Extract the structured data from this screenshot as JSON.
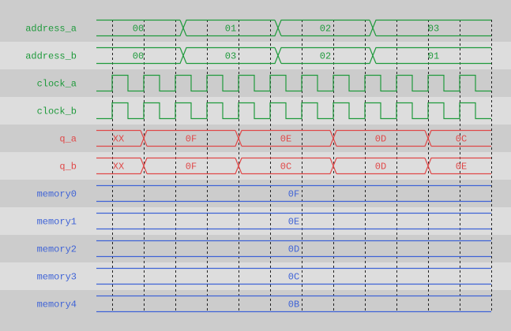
{
  "colors": {
    "row_dark": "#cccccc",
    "row_light": "#dddddd",
    "green": "#1f9a3c",
    "red": "#e04848",
    "blue": "#3f63d6",
    "grid": "#222222"
  },
  "time_grid_divisions": 12,
  "signals": [
    {
      "name": "address_a",
      "kind": "bus",
      "color": "green",
      "segments": [
        {
          "value": "00",
          "end_tick": 5.5
        },
        {
          "value": "01",
          "end_tick": 11.5
        },
        {
          "value": "02",
          "end_tick": 17.5
        },
        {
          "value": "03",
          "end_tick": 25
        }
      ]
    },
    {
      "name": "address_b",
      "kind": "bus",
      "color": "green",
      "segments": [
        {
          "value": "00",
          "end_tick": 5.5
        },
        {
          "value": "03",
          "end_tick": 11.5
        },
        {
          "value": "02",
          "end_tick": 17.5
        },
        {
          "value": "01",
          "end_tick": 25
        }
      ]
    },
    {
      "name": "clock_a",
      "kind": "clock",
      "color": "green"
    },
    {
      "name": "clock_b",
      "kind": "clock",
      "color": "green"
    },
    {
      "name": "q_a",
      "kind": "bus",
      "color": "red",
      "segments": [
        {
          "value": "XX",
          "end_tick": 3
        },
        {
          "value": "0F",
          "end_tick": 9
        },
        {
          "value": "0E",
          "end_tick": 15
        },
        {
          "value": "0D",
          "end_tick": 21
        },
        {
          "value": "0C",
          "end_tick": 25
        }
      ]
    },
    {
      "name": "q_b",
      "kind": "bus",
      "color": "red",
      "segments": [
        {
          "value": "XX",
          "end_tick": 3
        },
        {
          "value": "0F",
          "end_tick": 9
        },
        {
          "value": "0C",
          "end_tick": 15
        },
        {
          "value": "0D",
          "end_tick": 21
        },
        {
          "value": "0E",
          "end_tick": 25
        }
      ]
    },
    {
      "name": "memory0",
      "kind": "bus",
      "color": "blue",
      "segments": [
        {
          "value": "0F",
          "end_tick": 25
        }
      ]
    },
    {
      "name": "memory1",
      "kind": "bus",
      "color": "blue",
      "segments": [
        {
          "value": "0E",
          "end_tick": 25
        }
      ]
    },
    {
      "name": "memory2",
      "kind": "bus",
      "color": "blue",
      "segments": [
        {
          "value": "0D",
          "end_tick": 25
        }
      ]
    },
    {
      "name": "memory3",
      "kind": "bus",
      "color": "blue",
      "segments": [
        {
          "value": "0C",
          "end_tick": 25
        }
      ]
    },
    {
      "name": "memory4",
      "kind": "bus",
      "color": "blue",
      "segments": [
        {
          "value": "0B",
          "end_tick": 25
        }
      ]
    }
  ]
}
